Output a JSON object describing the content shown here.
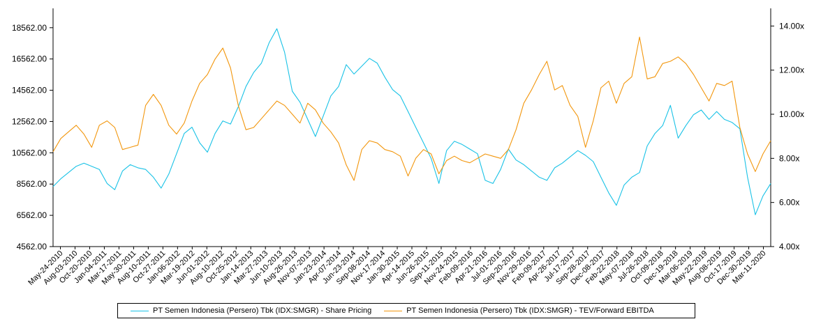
{
  "chart_data": {
    "type": "line",
    "x_ticks": [
      "May-24-2010",
      "Aug-03-2010",
      "Oct-20-2010",
      "Jan-04-2011",
      "Mar-17-2011",
      "May-30-2011",
      "Aug-10-2011",
      "Oct-27-2011",
      "Jan-06-2012",
      "Mar-19-2012",
      "Jun-01-2012",
      "Aug-10-2012",
      "Oct-25-2012",
      "Jan-14-2013",
      "Mar-27-2013",
      "Jun-10-2013",
      "Aug-26-2013",
      "Nov-07-2013",
      "Jan-23-2014",
      "Apr-07-2014",
      "Jun-23-2014",
      "Sep-08-2014",
      "Nov-17-2014",
      "Jan-30-2015",
      "Apr-14-2015",
      "Jun-26-2015",
      "Sep-11-2015",
      "Nov-24-2015",
      "Feb-09-2016",
      "Apr-21-2016",
      "Jul-01-2016",
      "Sep-20-2016",
      "Nov-29-2016",
      "Feb-09-2017",
      "Apr-26-2017",
      "Jul-17-2017",
      "Sep-28-2017",
      "Dec-08-2017",
      "Feb-22-2018",
      "May-07-2018",
      "Jul-26-2018",
      "Oct-09-2018",
      "Dec-19-2018",
      "Mar-06-2019",
      "May-22-2019",
      "Aug-08-2019",
      "Oct-17-2019",
      "Dec-30-2019",
      "Mar-11-2020"
    ],
    "left_axis": {
      "ticks": [
        "4562.00",
        "6562.00",
        "8562.00",
        "10562.00",
        "12562.00",
        "14562.00",
        "16562.00",
        "18562.00"
      ],
      "range": [
        4562,
        19800
      ]
    },
    "right_axis": {
      "ticks": [
        "4.00x",
        "6.00x",
        "8.00x",
        "10.00x",
        "12.00x",
        "14.00x"
      ],
      "range": [
        4.0,
        14.8
      ]
    },
    "series": [
      {
        "name": "PT Semen Indonesia (Persero) Tbk (IDX:SMGR) - Share Pricing",
        "axis": "left",
        "color": "#19c2e6",
        "values": [
          8400,
          8900,
          9300,
          9700,
          9900,
          9700,
          9500,
          8600,
          8200,
          9400,
          9800,
          9600,
          9500,
          9000,
          8300,
          9200,
          10500,
          11800,
          12200,
          11200,
          10600,
          11800,
          12600,
          12400,
          13500,
          14800,
          15700,
          16300,
          17600,
          18500,
          17000,
          14500,
          13800,
          12700,
          11600,
          12900,
          14200,
          14800,
          16200,
          15600,
          16100,
          16600,
          16300,
          15400,
          14600,
          14200,
          13200,
          12200,
          11200,
          10200,
          8600,
          10700,
          11300,
          11100,
          10800,
          10500,
          8800,
          8600,
          9500,
          10800,
          10100,
          9800,
          9400,
          9000,
          8800,
          9600,
          9900,
          10300,
          10700,
          10400,
          10000,
          9000,
          8000,
          7200,
          8500,
          9000,
          9300,
          11000,
          11800,
          12300,
          13600,
          11500,
          12300,
          13000,
          13300,
          12700,
          13200,
          12700,
          12500,
          12100,
          9000,
          6600,
          7800,
          8600
        ]
      },
      {
        "name": "PT Semen Indonesia (Persero) Tbk (IDX:SMGR) - TEV/Forward EBITDA",
        "axis": "right",
        "color": "#f2960c",
        "values": [
          8.3,
          8.9,
          9.2,
          9.5,
          9.1,
          8.5,
          9.5,
          9.7,
          9.4,
          8.4,
          8.5,
          8.6,
          10.4,
          10.9,
          10.4,
          9.5,
          9.1,
          9.6,
          10.6,
          11.4,
          11.8,
          12.5,
          13.0,
          12.1,
          10.4,
          9.3,
          9.4,
          9.8,
          10.2,
          10.6,
          10.4,
          10.0,
          9.6,
          10.5,
          10.2,
          9.6,
          9.2,
          8.7,
          7.7,
          7.0,
          8.4,
          8.8,
          8.7,
          8.4,
          8.3,
          8.1,
          7.2,
          8.0,
          8.4,
          8.2,
          7.3,
          7.9,
          8.1,
          7.9,
          7.8,
          8.0,
          8.2,
          8.1,
          8.0,
          8.4,
          9.3,
          10.5,
          11.1,
          11.8,
          12.4,
          11.1,
          11.3,
          10.4,
          9.9,
          8.5,
          9.7,
          11.2,
          11.5,
          10.5,
          11.4,
          11.7,
          13.5,
          11.6,
          11.7,
          12.3,
          12.4,
          12.6,
          12.3,
          11.8,
          11.2,
          10.6,
          11.4,
          11.3,
          11.5,
          9.4,
          8.2,
          7.4,
          8.2,
          8.8
        ]
      }
    ],
    "legend_position": "bottom",
    "grid": false
  }
}
